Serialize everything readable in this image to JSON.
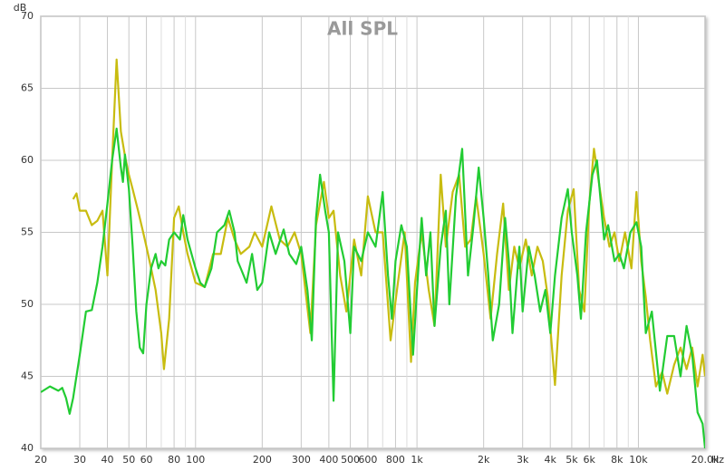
{
  "chart_data": {
    "type": "line",
    "title": "All SPL",
    "y_label": "dB",
    "x_label": "Hz",
    "xscale": "log",
    "grid": true,
    "xlim": [
      20,
      20000
    ],
    "ylim": [
      40,
      70
    ],
    "yticks": [
      40,
      45,
      50,
      55,
      60,
      65,
      70
    ],
    "xticks": [
      20,
      30,
      40,
      50,
      60,
      80,
      100,
      200,
      300,
      400,
      500,
      600,
      800,
      {
        "value": 1000,
        "label": "1k"
      },
      {
        "value": 2000,
        "label": "2k"
      },
      {
        "value": 3000,
        "label": "3k"
      },
      {
        "value": 4000,
        "label": "4k"
      },
      {
        "value": 5000,
        "label": "5k"
      },
      {
        "value": 6000,
        "label": "6k"
      },
      {
        "value": 8000,
        "label": "8k"
      },
      {
        "value": 10000,
        "label": "10k"
      },
      {
        "value": 20000,
        "label": "20.0k"
      }
    ],
    "xminorticks": [
      70,
      90,
      700,
      900,
      7000,
      9000
    ],
    "series": [
      {
        "color": "#c8bc10",
        "x": [
          28,
          29,
          30,
          32,
          34,
          36,
          38,
          40,
          42,
          44,
          46,
          48,
          50,
          52,
          55,
          58,
          60,
          63,
          66,
          70,
          72,
          76,
          80,
          84,
          88,
          92,
          100,
          110,
          120,
          130,
          140,
          150,
          160,
          175,
          185,
          200,
          220,
          240,
          260,
          280,
          300,
          330,
          350,
          380,
          400,
          420,
          450,
          480,
          520,
          560,
          600,
          650,
          700,
          760,
          820,
          880,
          940,
          980,
          1050,
          1130,
          1200,
          1280,
          1350,
          1450,
          1550,
          1650,
          1750,
          1850,
          2000,
          2150,
          2300,
          2450,
          2600,
          2750,
          2900,
          3100,
          3300,
          3500,
          3700,
          3900,
          4200,
          4500,
          4800,
          5100,
          5400,
          5700,
          6000,
          6300,
          6700,
          7000,
          7400,
          7800,
          8200,
          8700,
          9300,
          9800,
          10300,
          10800,
          11300,
          12000,
          12800,
          13500,
          14500,
          15500,
          16500,
          17500,
          18500,
          19500,
          20000
        ],
        "values": [
          57.3,
          57.7,
          56.5,
          56.5,
          55.5,
          55.8,
          56.5,
          52,
          60,
          67,
          62,
          60.3,
          59,
          58,
          56.5,
          55,
          54,
          52.5,
          51,
          48,
          45.5,
          49,
          56,
          56.8,
          55,
          53.5,
          51.5,
          51.2,
          53.5,
          53.5,
          56,
          54.5,
          53.5,
          54,
          55,
          54,
          56.8,
          54.5,
          54,
          55,
          53.5,
          48,
          55.5,
          58.5,
          56,
          56.5,
          52,
          49.5,
          54.5,
          52,
          57.5,
          55,
          55,
          47.5,
          51.5,
          55,
          46,
          51.5,
          55,
          51,
          48.5,
          59,
          54,
          57.8,
          59,
          54,
          54.5,
          57.5,
          53.5,
          49,
          53.5,
          57,
          51,
          54,
          52.5,
          54.5,
          52,
          54,
          53,
          50.5,
          44.4,
          52,
          56.5,
          58,
          51,
          49.5,
          57,
          60.8,
          58,
          56,
          54,
          55,
          53,
          55,
          52.5,
          57.8,
          53,
          50.5,
          47.5,
          44.3,
          45.3,
          43.8,
          45.8,
          47,
          45.5,
          47,
          44.3,
          46.5,
          45
        ]
      },
      {
        "color": "#22cc33",
        "x": [
          20,
          22,
          24,
          25,
          26,
          27,
          28,
          30,
          32,
          34,
          36,
          38,
          40,
          42,
          44,
          46,
          47,
          48,
          50,
          52,
          54,
          56,
          58,
          60,
          63,
          66,
          68,
          70,
          73,
          76,
          80,
          85,
          88,
          92,
          100,
          105,
          110,
          118,
          125,
          135,
          142,
          150,
          155,
          160,
          170,
          180,
          190,
          200,
          215,
          230,
          250,
          265,
          285,
          300,
          320,
          335,
          350,
          365,
          385,
          400,
          420,
          440,
          470,
          500,
          520,
          560,
          600,
          650,
          700,
          740,
          770,
          800,
          850,
          900,
          960,
          1000,
          1050,
          1100,
          1150,
          1200,
          1280,
          1350,
          1400,
          1500,
          1600,
          1700,
          1800,
          1900,
          2000,
          2100,
          2200,
          2350,
          2500,
          2600,
          2700,
          2900,
          3000,
          3200,
          3400,
          3600,
          3800,
          4000,
          4200,
          4500,
          4800,
          5000,
          5300,
          5500,
          5800,
          6200,
          6500,
          7000,
          7300,
          7800,
          8200,
          8600,
          9200,
          9800,
          10300,
          10800,
          11500,
          12500,
          13500,
          14500,
          15500,
          16500,
          17500,
          18500,
          19500,
          20000
        ],
        "values": [
          43.9,
          44.3,
          44,
          44.2,
          43.5,
          42.4,
          43.5,
          46.5,
          49.5,
          49.6,
          51.5,
          54,
          57,
          60,
          62.2,
          59.5,
          58.5,
          60.4,
          58,
          54,
          49.5,
          47,
          46.6,
          50,
          52.5,
          53.5,
          52.5,
          53,
          52.7,
          54.5,
          55,
          54.5,
          56.2,
          54.5,
          52.5,
          51.5,
          51.2,
          52.5,
          55,
          55.5,
          56.5,
          55,
          53,
          52.5,
          51.5,
          53.5,
          51,
          51.5,
          55,
          53.5,
          55.2,
          53.5,
          52.8,
          54,
          51,
          47.5,
          56,
          59,
          56.5,
          55,
          43.3,
          55,
          53,
          48,
          54,
          53,
          55,
          54,
          57.8,
          52,
          49,
          53,
          55.5,
          54,
          46.5,
          51,
          56,
          52,
          55,
          48.5,
          54,
          56.5,
          50,
          57.5,
          60.8,
          52,
          55.5,
          59.5,
          56,
          52,
          47.5,
          50,
          56,
          53,
          48,
          54,
          49.5,
          54,
          52,
          49.5,
          51,
          48,
          52,
          56,
          58,
          55,
          52,
          49,
          55,
          59,
          60,
          54.5,
          55.5,
          53,
          53.5,
          52.5,
          55,
          55.7,
          54,
          48,
          49.5,
          44,
          47.8,
          47.8,
          45,
          48.5,
          46.5,
          42.5,
          41.7,
          40
        ]
      }
    ]
  }
}
